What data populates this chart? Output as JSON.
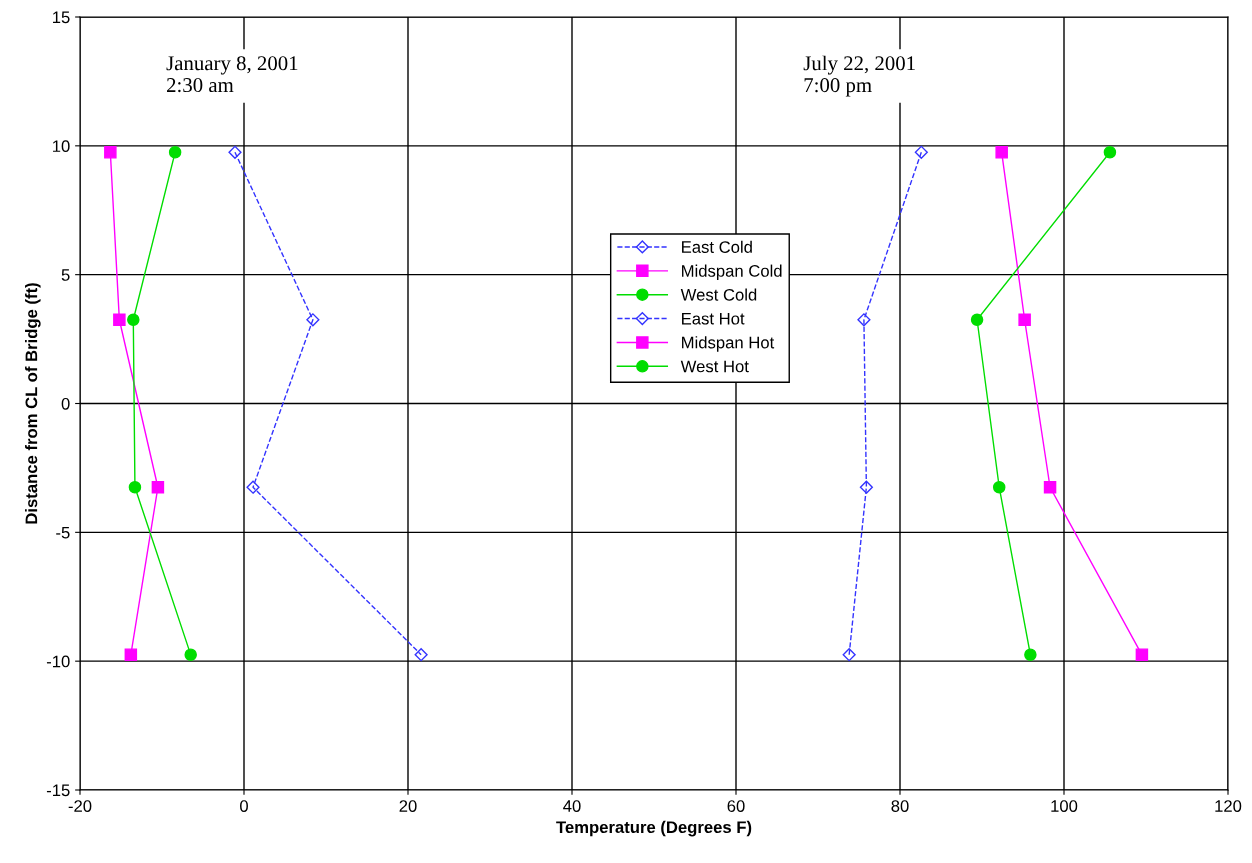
{
  "chart_data": {
    "type": "line",
    "xlabel": "Temperature (Degrees F)",
    "ylabel": "Distance from CL of Bridge (ft)",
    "xlim": [
      -20,
      120
    ],
    "xticks": [
      -20,
      0,
      20,
      40,
      60,
      80,
      100,
      120
    ],
    "ylim": [
      -15,
      15
    ],
    "yticks": [
      -15,
      -10,
      -5,
      0,
      5,
      10,
      15
    ],
    "grid": true,
    "legend": "top center",
    "annotations": [
      "January 8, 2001\n2:30 am",
      "July 22, 2001\n7:00 pm"
    ],
    "series": [
      {
        "name": "East Cold",
        "color": "#3333ff",
        "marker": "diamond",
        "line_style": "dashed",
        "x": [
          -1.1,
          8.4,
          1.1,
          21.6
        ],
        "values": [
          9.75,
          3.25,
          -3.25,
          -9.75
        ]
      },
      {
        "name": "Midspan Cold",
        "color": "#ff00ff",
        "marker": "square",
        "line_style": "solid",
        "x": [
          -16.3,
          -15.2,
          -10.5,
          -13.8
        ],
        "values": [
          9.75,
          3.25,
          -3.25,
          -9.75
        ]
      },
      {
        "name": "West Cold",
        "color": "#00dd00",
        "marker": "circle",
        "line_style": "solid",
        "x": [
          -8.4,
          -13.5,
          -13.3,
          -6.5
        ],
        "values": [
          9.75,
          3.25,
          -3.25,
          -9.75
        ]
      },
      {
        "name": "East Hot",
        "color": "#3333ff",
        "marker": "diamond",
        "line_style": "dashed",
        "x": [
          82.6,
          75.6,
          75.9,
          73.8
        ],
        "values": [
          9.75,
          3.25,
          -3.25,
          -9.75
        ]
      },
      {
        "name": "Midspan Hot",
        "color": "#ff00ff",
        "marker": "square",
        "line_style": "solid",
        "x": [
          92.4,
          95.2,
          98.3,
          109.5
        ],
        "values": [
          9.75,
          3.25,
          -3.25,
          -9.75
        ]
      },
      {
        "name": "West Hot",
        "color": "#00dd00",
        "marker": "circle",
        "line_style": "solid",
        "x": [
          105.6,
          89.4,
          92.1,
          95.9
        ],
        "values": [
          9.75,
          3.25,
          -3.25,
          -9.75
        ]
      }
    ]
  }
}
